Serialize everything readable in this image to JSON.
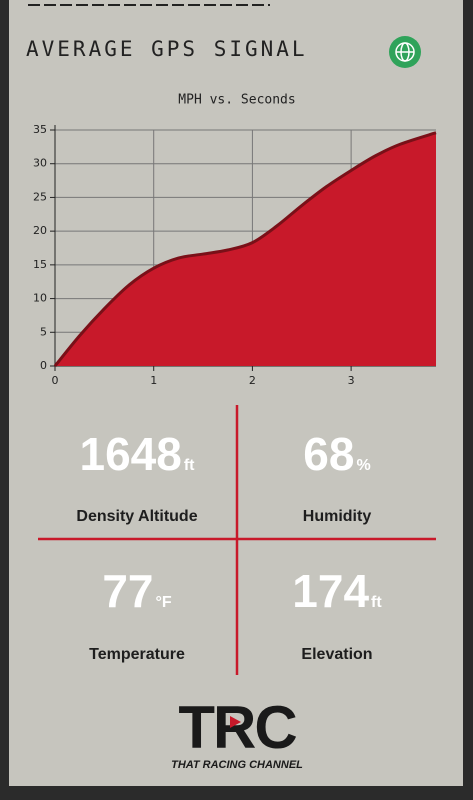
{
  "header": {
    "title": "AVERAGE GPS SIGNAL"
  },
  "chart_data": {
    "type": "area",
    "title": "MPH vs. Seconds",
    "x": [
      0,
      0.25,
      0.5,
      0.75,
      1,
      1.25,
      1.5,
      1.75,
      2,
      2.25,
      2.5,
      2.75,
      3,
      3.25,
      3.5,
      3.86
    ],
    "values": [
      0,
      4.5,
      8.5,
      12,
      14.5,
      16,
      16.6,
      17.2,
      18.3,
      20.8,
      23.8,
      26.6,
      29,
      31.2,
      32.9,
      34.6
    ],
    "color": "#c8192a",
    "line_color": "#7a1018",
    "xlim": [
      0,
      3.86
    ],
    "ylim": [
      0,
      35
    ],
    "xticks": [
      0,
      1,
      2,
      3
    ],
    "yticks": [
      0,
      5,
      10,
      15,
      20,
      25,
      30,
      35
    ],
    "grid": true
  },
  "stats": [
    {
      "value": 1648,
      "unit": "ft",
      "label": "Density Altitude"
    },
    {
      "value": 68,
      "unit": "%",
      "label": "Humidity"
    },
    {
      "value": 77,
      "unit": "°F",
      "label": "Temperature"
    },
    {
      "value": 174,
      "unit": "ft",
      "label": "Elevation"
    }
  ],
  "logo": {
    "name": "TRC",
    "tagline": "THAT RACING CHANNEL"
  }
}
